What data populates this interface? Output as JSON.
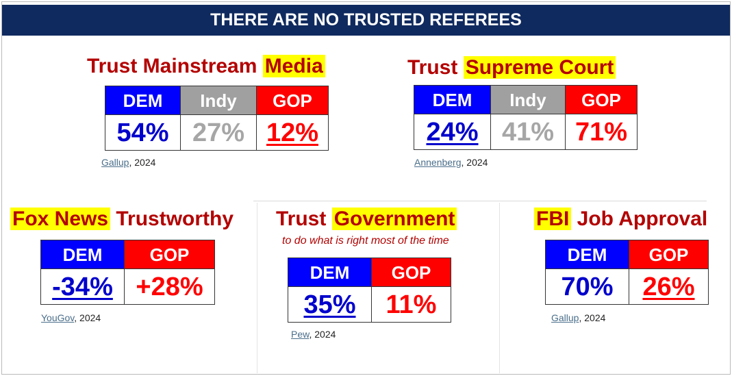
{
  "header": {
    "title": "THERE ARE NO TRUSTED REFEREES"
  },
  "chart_data": [
    {
      "type": "table",
      "title_parts": [
        "Trust Mainstream ",
        "Media"
      ],
      "columns": [
        "DEM",
        "Indy",
        "GOP"
      ],
      "values": [
        "54%",
        "27%",
        "12%"
      ],
      "source_link": "Gallup",
      "source_year": ", 2024"
    },
    {
      "type": "table",
      "title_parts": [
        "Trust ",
        "Supreme Court"
      ],
      "columns": [
        "DEM",
        "Indy",
        "GOP"
      ],
      "values": [
        "24%",
        "41%",
        "71%"
      ],
      "source_link": "Annenberg",
      "source_year": ", 2024"
    },
    {
      "type": "table",
      "title_parts": [
        "Fox News",
        " Trustworthy"
      ],
      "columns": [
        "DEM",
        "GOP"
      ],
      "values": [
        "-34%",
        "+28%"
      ],
      "source_link": "YouGov",
      "source_year": ", 2024"
    },
    {
      "type": "table",
      "title_parts": [
        "Trust ",
        "Government"
      ],
      "subtitle": "to do what is right most of the time",
      "columns": [
        "DEM",
        "GOP"
      ],
      "values": [
        "35%",
        "11%"
      ],
      "source_link": "Pew",
      "source_year": ", 2024"
    },
    {
      "type": "table",
      "title_parts": [
        "FBI",
        " Job Approval"
      ],
      "columns": [
        "DEM",
        "GOP"
      ],
      "values": [
        "70%",
        "26%"
      ],
      "source_link": "Gallup",
      "source_year": ", 2024"
    }
  ],
  "colors": {
    "header_bg": "#0f2a5e",
    "title_red": "#b30000",
    "highlight": "#ffff00",
    "dem": "#0000ff",
    "indy": "#a0a0a0",
    "gop": "#ff0000"
  }
}
